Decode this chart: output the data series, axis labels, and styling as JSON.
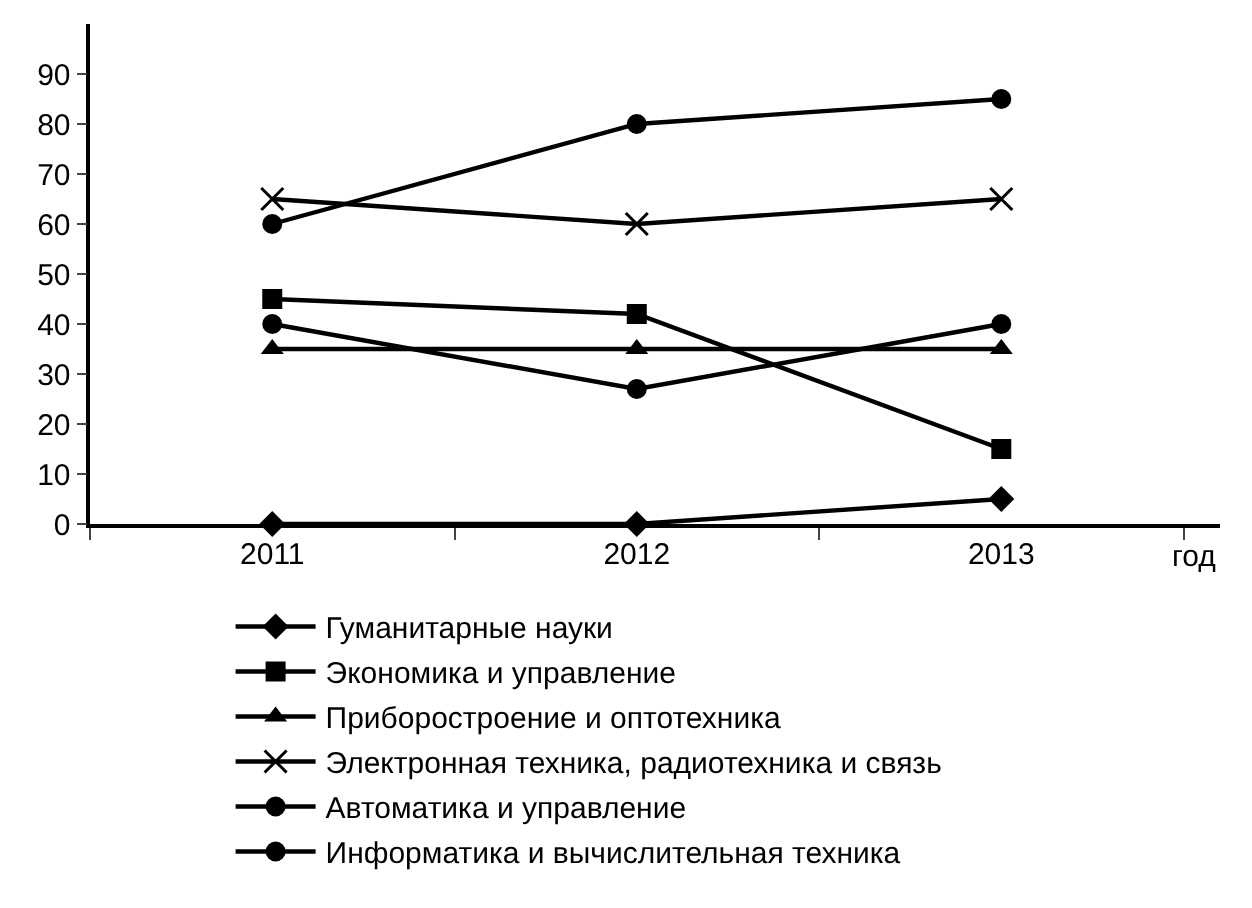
{
  "chart_data": {
    "type": "line",
    "xlabel": "год",
    "categories": [
      "2011",
      "2012",
      "2013"
    ],
    "series": [
      {
        "name": "Гуманитарные науки",
        "color": "#000000",
        "marker": "diamond",
        "values": [
          0,
          0,
          5
        ]
      },
      {
        "name": "Экономика и управление",
        "color": "#000000",
        "marker": "square",
        "values": [
          45,
          42,
          15
        ]
      },
      {
        "name": "Приборостроение и оптотехника",
        "color": "#000000",
        "marker": "triangle",
        "values": [
          35,
          35,
          35
        ]
      },
      {
        "name": "Электронная техника, радиотехника и связь",
        "color": "#000000",
        "marker": "cross",
        "values": [
          65,
          60,
          65
        ]
      },
      {
        "name": "Автоматика и управление",
        "color": "#000000",
        "marker": "circle",
        "values": [
          40,
          27,
          40
        ]
      },
      {
        "name": "Информатика и вычислительная техника",
        "color": "#000000",
        "marker": "circle",
        "values": [
          60,
          80,
          85
        ]
      }
    ],
    "ylim": [
      0,
      100
    ],
    "yticks": [
      0,
      10,
      20,
      30,
      40,
      50,
      60,
      70,
      80,
      90
    ],
    "grid": false,
    "legend": "bottom",
    "line_style": "solid"
  }
}
